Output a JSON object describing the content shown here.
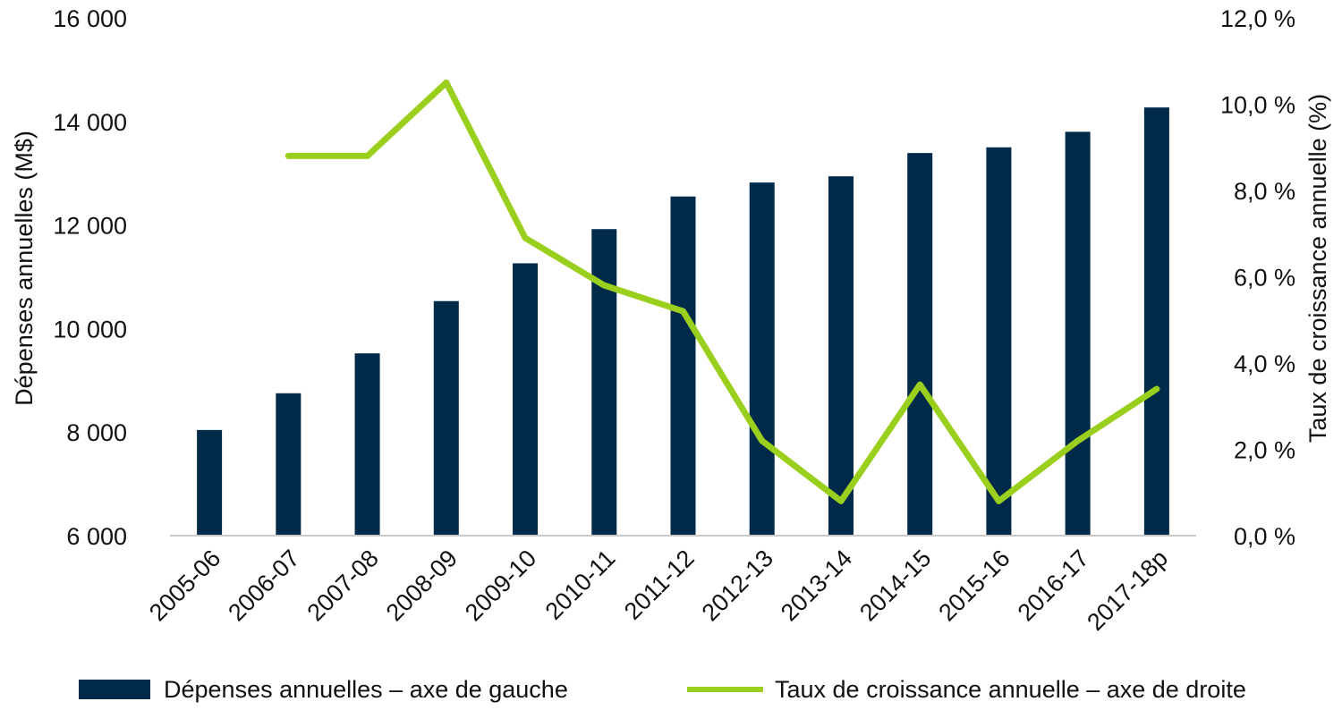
{
  "chart_data": {
    "type": "bar",
    "categories": [
      "2005-06",
      "2006-07",
      "2007-08",
      "2008-09",
      "2009-10",
      "2010-11",
      "2011-12",
      "2012-13",
      "2013-14",
      "2014-15",
      "2015-16",
      "2016-17",
      "2017-18p"
    ],
    "series": [
      {
        "name": "Dépenses annuelles – axe de gauche",
        "type": "bar",
        "axis": "left",
        "color": "#002a4a",
        "values": [
          8040,
          8750,
          9520,
          10530,
          11260,
          11920,
          12550,
          12820,
          12940,
          13390,
          13500,
          13800,
          14270
        ]
      },
      {
        "name": "Taux de croissance annuelle – axe de droite",
        "type": "line",
        "axis": "right",
        "color": "#9bcf1e",
        "values": [
          null,
          8.8,
          8.8,
          10.5,
          6.9,
          5.8,
          5.2,
          2.2,
          0.8,
          3.5,
          0.8,
          2.2,
          3.4
        ]
      }
    ],
    "ylabel": "Dépenses annuelles (M$)",
    "y2label": "Taux de croissance annuelle (%)",
    "ylim": [
      6000,
      16000
    ],
    "y2lim": [
      0,
      12
    ],
    "yticks": [
      "6 000",
      "8 000",
      "10 000",
      "12 000",
      "14 000",
      "16 000"
    ],
    "y2ticks": [
      "0,0 %",
      "2,0 %",
      "4,0 %",
      "6,0 %",
      "8,0 %",
      "10,0 %",
      "12,0 %"
    ],
    "grid": false,
    "legend_position": "bottom"
  }
}
